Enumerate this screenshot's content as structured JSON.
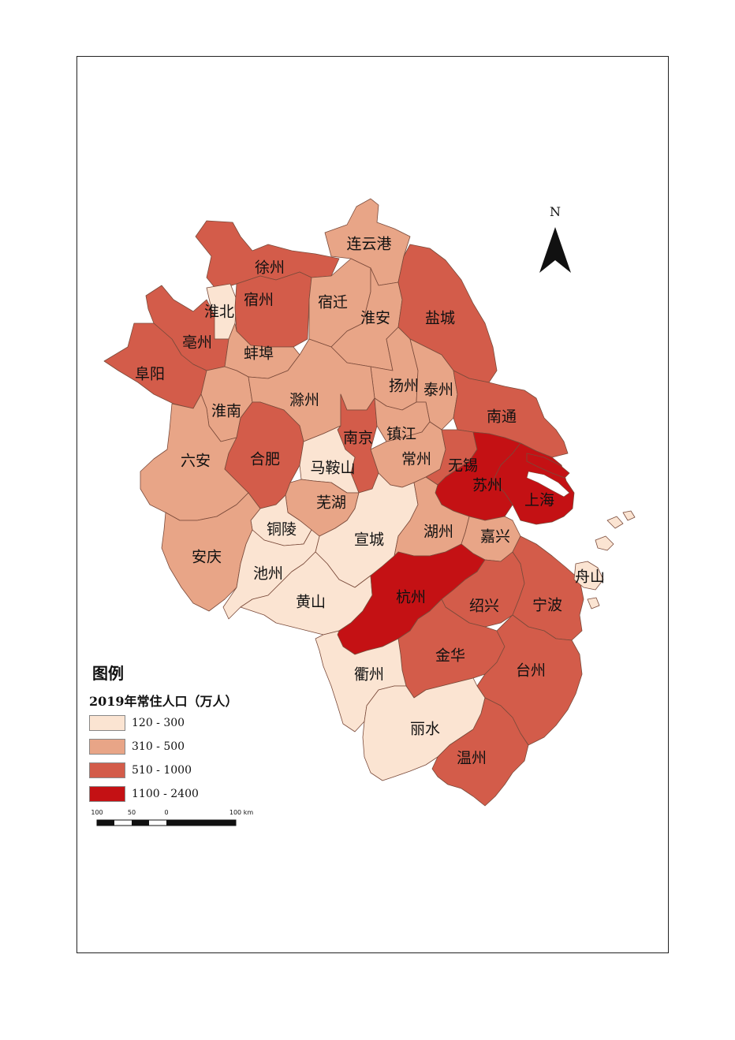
{
  "legend": {
    "title": "图例",
    "subtitle": "2019年常住人口（万人）",
    "classes": [
      {
        "label": "120 - 300",
        "color": "#fbe4d2"
      },
      {
        "label": "310 - 500",
        "color": "#e8a587"
      },
      {
        "label": "510 - 1000",
        "color": "#d35c4a"
      },
      {
        "label": "1100 - 2400",
        "color": "#c41114"
      }
    ]
  },
  "north_arrow": {
    "label": "N"
  },
  "scale_bar": {
    "ticks": [
      "100",
      "50",
      "0",
      "100 km"
    ]
  },
  "cities": [
    {
      "name": "连云港",
      "class": 1
    },
    {
      "name": "徐州",
      "class": 2
    },
    {
      "name": "淮北",
      "class": 0
    },
    {
      "name": "宿州",
      "class": 2
    },
    {
      "name": "宿迁",
      "class": 1
    },
    {
      "name": "淮安",
      "class": 1
    },
    {
      "name": "盐城",
      "class": 2
    },
    {
      "name": "亳州",
      "class": 2
    },
    {
      "name": "阜阳",
      "class": 2
    },
    {
      "name": "蚌埠",
      "class": 1
    },
    {
      "name": "扬州",
      "class": 1
    },
    {
      "name": "泰州",
      "class": 1
    },
    {
      "name": "淮南",
      "class": 1
    },
    {
      "name": "滁州",
      "class": 1
    },
    {
      "name": "南通",
      "class": 2
    },
    {
      "name": "南京",
      "class": 2
    },
    {
      "name": "镇江",
      "class": 1
    },
    {
      "name": "六安",
      "class": 1
    },
    {
      "name": "合肥",
      "class": 2
    },
    {
      "name": "马鞍山",
      "class": 0
    },
    {
      "name": "常州",
      "class": 1
    },
    {
      "name": "无锡",
      "class": 2
    },
    {
      "name": "苏州",
      "class": 3
    },
    {
      "name": "上海",
      "class": 3
    },
    {
      "name": "芜湖",
      "class": 1
    },
    {
      "name": "铜陵",
      "class": 0
    },
    {
      "name": "宣城",
      "class": 0
    },
    {
      "name": "湖州",
      "class": 1
    },
    {
      "name": "嘉兴",
      "class": 1
    },
    {
      "name": "安庆",
      "class": 1
    },
    {
      "name": "池州",
      "class": 0
    },
    {
      "name": "舟山",
      "class": 0
    },
    {
      "name": "黄山",
      "class": 0
    },
    {
      "name": "杭州",
      "class": 3
    },
    {
      "name": "绍兴",
      "class": 2
    },
    {
      "name": "宁波",
      "class": 2
    },
    {
      "name": "金华",
      "class": 2
    },
    {
      "name": "衢州",
      "class": 0
    },
    {
      "name": "台州",
      "class": 2
    },
    {
      "name": "丽水",
      "class": 0
    },
    {
      "name": "温州",
      "class": 2
    }
  ]
}
